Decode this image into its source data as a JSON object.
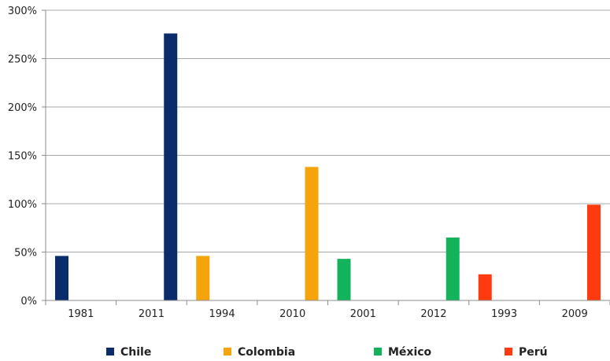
{
  "chart_data": {
    "type": "bar",
    "categories": [
      "1981",
      "2011",
      "1994",
      "2010",
      "2001",
      "2012",
      "1993",
      "2009"
    ],
    "values": [
      46,
      276,
      46,
      138,
      43,
      65,
      27,
      99
    ],
    "category_series": [
      "Chile",
      "Chile",
      "Colombia",
      "Colombia",
      "México",
      "México",
      "Perú",
      "Perú"
    ],
    "bar_offset": [
      "left",
      "right",
      "left",
      "right",
      "left",
      "right",
      "left",
      "right"
    ],
    "series": [
      {
        "name": "Chile",
        "color": "#0b2c6b"
      },
      {
        "name": "Colombia",
        "color": "#f5a40c"
      },
      {
        "name": "México",
        "color": "#12b35a"
      },
      {
        "name": "Perú",
        "color": "#ff3a0f"
      }
    ],
    "ylim": [
      0,
      300
    ],
    "yticks": [
      0,
      50,
      100,
      150,
      200,
      250,
      300
    ],
    "ytick_labels": [
      "0%",
      "50%",
      "100%",
      "150%",
      "200%",
      "250%",
      "300%"
    ],
    "grid": true,
    "legend_placement": "bottom",
    "title": "",
    "xlabel": "",
    "ylabel": ""
  }
}
